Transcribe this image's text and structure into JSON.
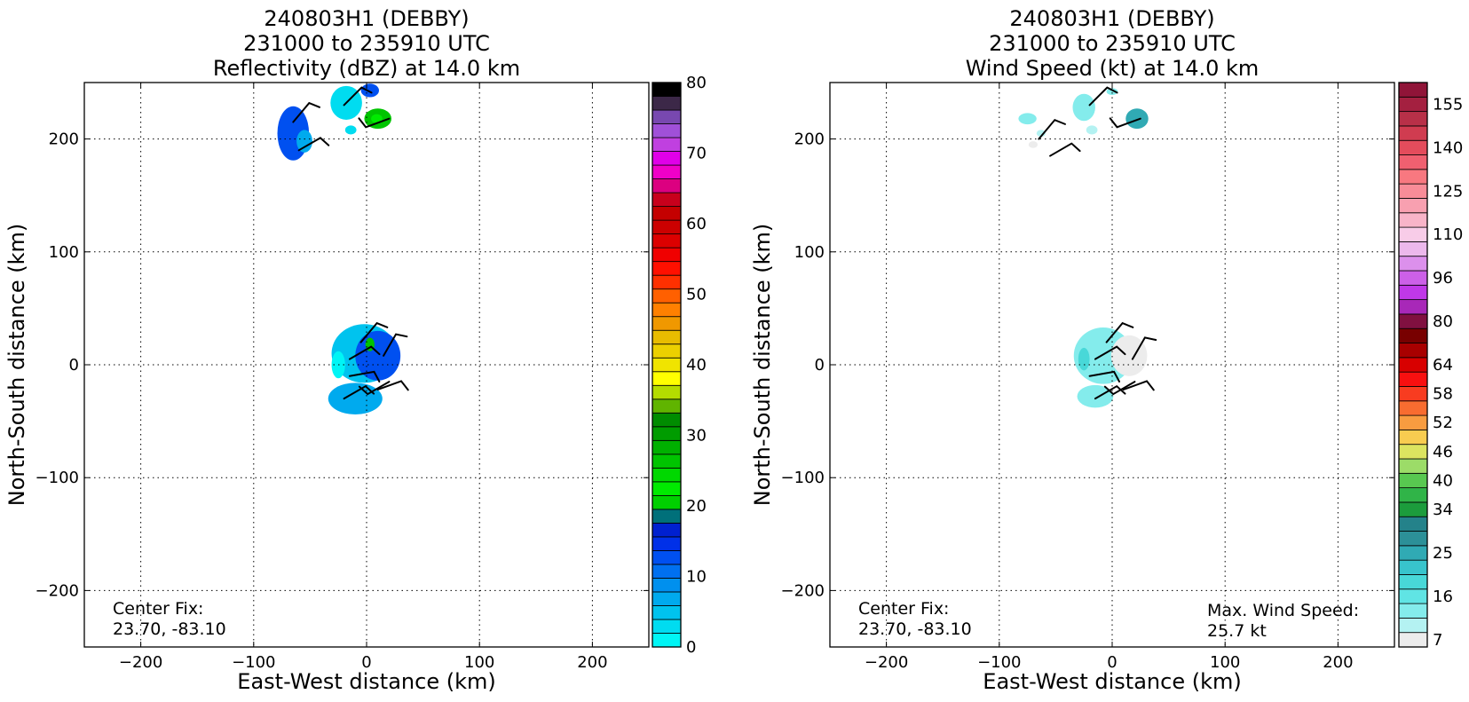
{
  "chart_data": [
    {
      "type": "heatmap",
      "title_lines": [
        "240803H1 (DEBBY)",
        "231000 to 235910 UTC",
        "Reflectivity (dBZ) at 14.0 km"
      ],
      "xlabel": "East-West distance (km)",
      "ylabel": "North-South distance (km)",
      "xlim": [
        -250,
        250
      ],
      "ylim": [
        -250,
        250
      ],
      "xticks": [
        -200,
        -100,
        0,
        100,
        200
      ],
      "yticks": [
        -200,
        -100,
        0,
        100,
        200
      ],
      "xtick_labels": [
        "−200",
        "−100",
        "0",
        "100",
        "200"
      ],
      "ytick_labels": [
        "−200",
        "−100",
        "0",
        "100",
        "200"
      ],
      "grid": true,
      "colorbar": {
        "range": [
          0,
          80
        ],
        "ticks": [
          0,
          10,
          20,
          30,
          40,
          50,
          60,
          70,
          80
        ],
        "tick_labels": [
          "0",
          "10",
          "20",
          "30",
          "40",
          "50",
          "60",
          "70",
          "80"
        ],
        "colors": [
          "#00f5f5",
          "#00dcf0",
          "#00c3ee",
          "#00aaee",
          "#0090ee",
          "#0070f0",
          "#0050f0",
          "#0030e8",
          "#0020d0",
          "#00707a",
          "#00d000",
          "#00ea00",
          "#00d800",
          "#00c400",
          "#00b000",
          "#009c00",
          "#008c00",
          "#60b400",
          "#b4dc00",
          "#ffff00",
          "#f0e400",
          "#ecd000",
          "#e8bc00",
          "#f09800",
          "#ff8000",
          "#ff6000",
          "#ff3000",
          "#ff1000",
          "#f00000",
          "#dc0000",
          "#cc0000",
          "#c40000",
          "#c8001c",
          "#dc0080",
          "#f000c8",
          "#e000e8",
          "#c040e0",
          "#a050d8",
          "#7848b0",
          "#3c2848",
          "#000000"
        ]
      },
      "echoes": [
        {
          "x": -65,
          "y": 205,
          "rx": 14,
          "ry": 24,
          "color": "#0050f0"
        },
        {
          "x": -55,
          "y": 198,
          "rx": 7,
          "ry": 10,
          "color": "#00aaee"
        },
        {
          "x": -18,
          "y": 232,
          "rx": 14,
          "ry": 15,
          "color": "#00dcf0"
        },
        {
          "x": 3,
          "y": 243,
          "rx": 8,
          "ry": 6,
          "color": "#0050f0"
        },
        {
          "x": -14,
          "y": 208,
          "rx": 5,
          "ry": 4,
          "color": "#00dcf0"
        },
        {
          "x": 10,
          "y": 218,
          "rx": 12,
          "ry": 9,
          "color": "#00c400"
        },
        {
          "x": 9,
          "y": 218,
          "rx": 5,
          "ry": 4,
          "color": "#00ea00"
        },
        {
          "x": -2,
          "y": 10,
          "rx": 29,
          "ry": 26,
          "color": "#00c3ee"
        },
        {
          "x": 10,
          "y": 8,
          "rx": 20,
          "ry": 22,
          "color": "#0050f0"
        },
        {
          "x": -10,
          "y": -30,
          "rx": 24,
          "ry": 14,
          "color": "#00aaee"
        },
        {
          "x": 3,
          "y": 18,
          "rx": 4,
          "ry": 6,
          "color": "#00c400"
        },
        {
          "x": -25,
          "y": 0,
          "rx": 6,
          "ry": 12,
          "color": "#00f5f5"
        }
      ],
      "barbs": [
        {
          "x": -65,
          "y": 215,
          "dir": 40,
          "speed": 15
        },
        {
          "x": -60,
          "y": 190,
          "dir": 60,
          "speed": 15
        },
        {
          "x": -20,
          "y": 230,
          "dir": 45,
          "speed": 12
        },
        {
          "x": 20,
          "y": 218,
          "dir": 250,
          "speed": 20
        },
        {
          "x": -5,
          "y": 20,
          "dir": 40,
          "speed": 15
        },
        {
          "x": -15,
          "y": 5,
          "dir": 60,
          "speed": 12
        },
        {
          "x": 15,
          "y": 8,
          "dir": 30,
          "speed": 15
        },
        {
          "x": -15,
          "y": -10,
          "dir": 80,
          "speed": 12
        },
        {
          "x": 10,
          "y": -22,
          "dir": 70,
          "speed": 15
        },
        {
          "x": -20,
          "y": -30,
          "dir": 60,
          "speed": 12
        },
        {
          "x": 20,
          "y": -15,
          "dir": 240,
          "speed": 15
        }
      ],
      "annotations": [
        {
          "lines": [
            "Center Fix:",
            "23.70, -83.10"
          ],
          "position": "bottom-left"
        }
      ]
    },
    {
      "type": "heatmap",
      "title_lines": [
        "240803H1 (DEBBY)",
        "231000 to 235910 UTC",
        "Wind Speed (kt) at 14.0 km"
      ],
      "xlabel": "East-West distance (km)",
      "ylabel": "North-South distance (km)",
      "xlim": [
        -250,
        250
      ],
      "ylim": [
        -250,
        250
      ],
      "xticks": [
        -200,
        -100,
        0,
        100,
        200
      ],
      "yticks": [
        -200,
        -100,
        0,
        100,
        200
      ],
      "xtick_labels": [
        "−200",
        "−100",
        "0",
        "100",
        "200"
      ],
      "ytick_labels": [
        "−200",
        "−100",
        "0",
        "100",
        "200"
      ],
      "grid": true,
      "colorbar": {
        "ticks": [
          7,
          16,
          25,
          34,
          40,
          46,
          52,
          58,
          64,
          80,
          96,
          110,
          125,
          140,
          155
        ],
        "tick_labels": [
          "7",
          "16",
          "25",
          "34",
          "40",
          "46",
          "52",
          "58",
          "64",
          "80",
          "96",
          "110",
          "125",
          "140",
          "155"
        ],
        "tick_cells": [
          0,
          3,
          6,
          9,
          11,
          13,
          15,
          17,
          19,
          22,
          25,
          28,
          31,
          34,
          37
        ],
        "colors": [
          "#ececec",
          "#b4f2f2",
          "#84ecec",
          "#60e4e4",
          "#48d8d8",
          "#38c4cc",
          "#30aab4",
          "#2c9098",
          "#24828a",
          "#1c9c3c",
          "#30b448",
          "#58c850",
          "#9cdc68",
          "#dce460",
          "#f8cc50",
          "#f89c40",
          "#f86c30",
          "#f83c20",
          "#f81010",
          "#d80000",
          "#a80000",
          "#780000",
          "#801040",
          "#a828b8",
          "#c038e8",
          "#cc60e8",
          "#dc90ec",
          "#ecb8ec",
          "#f8cce8",
          "#f8b4c8",
          "#f8a0b0",
          "#f88c98",
          "#f87880",
          "#f06070",
          "#e44c5c",
          "#d03c50",
          "#b83048",
          "#a42040",
          "#901438"
        ]
      },
      "echoes": [
        {
          "x": -75,
          "y": 218,
          "rx": 8,
          "ry": 5,
          "color": "#84ecec"
        },
        {
          "x": -63,
          "y": 205,
          "rx": 4,
          "ry": 3,
          "color": "#b4f2f2"
        },
        {
          "x": -70,
          "y": 195,
          "rx": 4,
          "ry": 3,
          "color": "#ececec"
        },
        {
          "x": -25,
          "y": 228,
          "rx": 10,
          "ry": 12,
          "color": "#84ecec"
        },
        {
          "x": -18,
          "y": 208,
          "rx": 5,
          "ry": 4,
          "color": "#b4f2f2"
        },
        {
          "x": 0,
          "y": 242,
          "rx": 5,
          "ry": 3,
          "color": "#84ecec"
        },
        {
          "x": 22,
          "y": 218,
          "rx": 10,
          "ry": 9,
          "color": "#30aab4"
        },
        {
          "x": -8,
          "y": 8,
          "rx": 26,
          "ry": 25,
          "color": "#84ecec"
        },
        {
          "x": 15,
          "y": 8,
          "rx": 16,
          "ry": 18,
          "color": "#ececec"
        },
        {
          "x": -15,
          "y": -28,
          "rx": 16,
          "ry": 10,
          "color": "#84ecec"
        },
        {
          "x": -25,
          "y": 5,
          "rx": 5,
          "ry": 10,
          "color": "#48d8d8"
        }
      ],
      "barbs": [
        {
          "x": -65,
          "y": 200,
          "dir": 40,
          "speed": 15
        },
        {
          "x": -55,
          "y": 185,
          "dir": 60,
          "speed": 15
        },
        {
          "x": -20,
          "y": 230,
          "dir": 45,
          "speed": 12
        },
        {
          "x": 25,
          "y": 218,
          "dir": 250,
          "speed": 20
        },
        {
          "x": -5,
          "y": 20,
          "dir": 40,
          "speed": 15
        },
        {
          "x": -15,
          "y": 5,
          "dir": 60,
          "speed": 12
        },
        {
          "x": 18,
          "y": 5,
          "dir": 30,
          "speed": 15
        },
        {
          "x": -20,
          "y": -10,
          "dir": 80,
          "speed": 12
        },
        {
          "x": 10,
          "y": -22,
          "dir": 70,
          "speed": 15
        },
        {
          "x": -15,
          "y": -30,
          "dir": 60,
          "speed": 12
        },
        {
          "x": 20,
          "y": -15,
          "dir": 240,
          "speed": 15
        }
      ],
      "annotations": [
        {
          "lines": [
            "Center Fix:",
            "23.70, -83.10"
          ],
          "position": "bottom-left"
        },
        {
          "lines": [
            "Max. Wind Speed:",
            "25.7 kt"
          ],
          "position": "bottom-right"
        }
      ]
    }
  ]
}
